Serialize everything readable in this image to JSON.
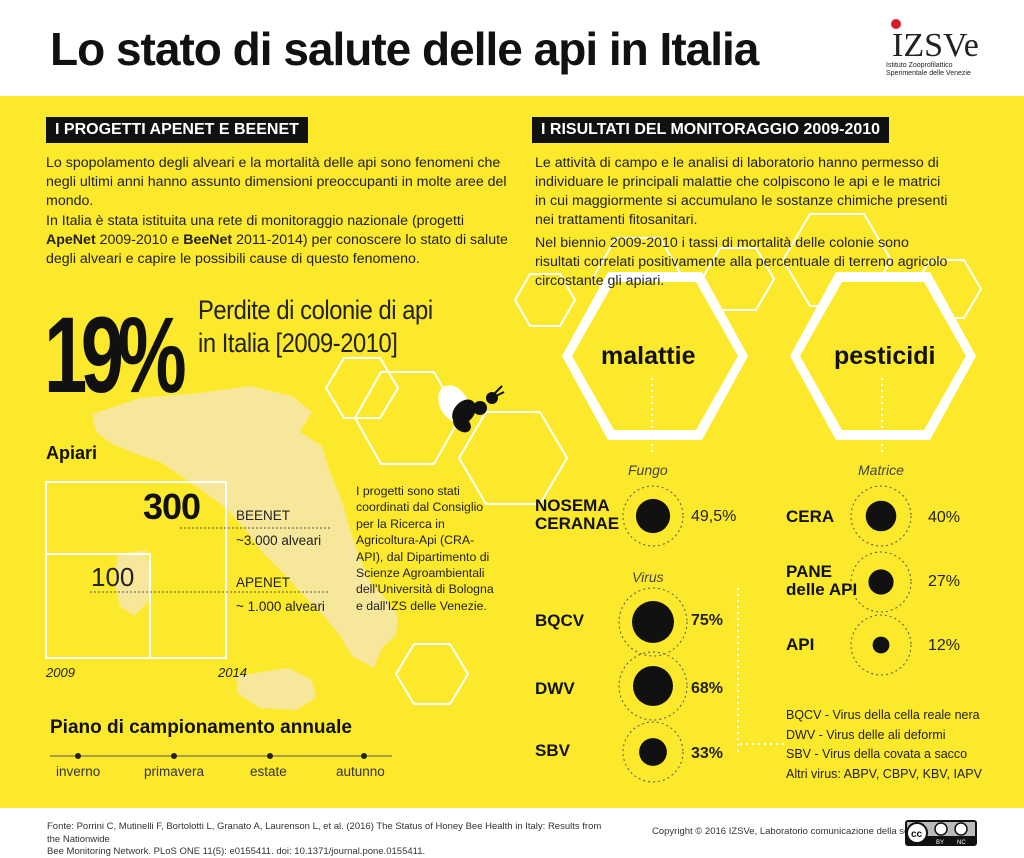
{
  "header": {
    "title": "Lo stato di salute delle api in Italia",
    "logo_letters": "IZSVe",
    "logo_lines": [
      "Istituto Zooprofilattico",
      "Sperimentale delle Venezie"
    ]
  },
  "left": {
    "section_title": "I PROGETTI APENET E BEENET",
    "para1": "Lo spopolamento degli alveari e la mortalità delle api sono fenomeni che negli ultimi anni hanno assunto dimensioni preoccupanti in molte aree del mondo.",
    "para2_a": "In Italia è stata istituita una rete di monitoraggio nazionale (progetti ",
    "para2_apenet": "ApeNet",
    "para2_b": " 2009-2010 e ",
    "para2_beenet": "BeeNet",
    "para2_c": " 2011-2014) per conoscere lo stato di salute degli alveari e capire le possibili cause di questo fenomeno.",
    "loss_value": "19%",
    "loss_label_1": "Perdite di colonie di api",
    "loss_label_2": "in Italia [2009-2010]",
    "apiari_title": "Apiari",
    "beenet_count": "300",
    "beenet_name": "BEENET",
    "beenet_hives": "~3.000 alveari",
    "apenet_count": "100",
    "apenet_name": "APENET",
    "apenet_hives": "~ 1.000 alveari",
    "year_start": "2009",
    "year_end": "2014",
    "note": "I progetti sono stati coordinati dal Consiglio per la Ricerca in Agricoltura-Api (CRA-API), dal Dipartimento di Scienze Agroambientali dell'Università di Bologna e dall'IZS delle Venezie.",
    "plan_title": "Piano di campionamento annuale",
    "seasons": [
      "inverno",
      "primavera",
      "estate",
      "autunno"
    ]
  },
  "right": {
    "section_title": "I RISULTATI DEL MONITORAGGIO 2009-2010",
    "para1": "Le attività di campo e le analisi di laboratorio hanno permesso di individuare le principali malattie che colpiscono le api e le matrici in cui maggiormente si accumulano le sostanze chimiche presenti nei trattamenti fitosanitari.",
    "para2": "Nel biennio 2009-2010 i tassi di mortalità delle colonie sono risultati correlati positivamente alla percentuale di terreno agricolo circostante gli apiari.",
    "malattie": {
      "title": "malattie",
      "fungo_label": "Fungo",
      "virus_label": "Virus",
      "rows": [
        {
          "line1": "NOSEMA",
          "line2": "CERANAE",
          "value": "49,5%",
          "fraction": 0.495
        },
        {
          "line1": "BQCV",
          "line2": "",
          "value": "75%",
          "fraction": 0.75
        },
        {
          "line1": "DWV",
          "line2": "",
          "value": "68%",
          "fraction": 0.68
        },
        {
          "line1": "SBV",
          "line2": "",
          "value": "33%",
          "fraction": 0.33
        }
      ]
    },
    "pesticidi": {
      "title": "pesticidi",
      "matrice_label": "Matrice",
      "rows": [
        {
          "line1": "CERA",
          "line2": "",
          "value": "40%",
          "fraction": 0.4
        },
        {
          "line1": "PANE",
          "line2": "delle API",
          "value": "27%",
          "fraction": 0.27
        },
        {
          "line1": "API",
          "line2": "",
          "value": "12%",
          "fraction": 0.12
        }
      ]
    },
    "legend": [
      "BQCV - Virus della cella reale nera",
      "DWV - Virus delle ali deformi",
      "SBV - Virus della covata a sacco",
      "Altri virus: ABPV, CBPV, KBV, IAPV"
    ]
  },
  "footer": {
    "source_line1": "Fonte: Porrini C, Mutinelli F, Bortolotti L, Granato A, Laurenson L, et al. (2016) The Status of Honey Bee Health in Italy: Results from the Nationwide",
    "source_line2": "Bee Monitoring Network. PLoS ONE 11(5): e0155411. doi: 10.1371/journal.pone.0155411.",
    "copyright": "Copyright © 2016 IZSVe, Laboratorio comunicazione della scienza.",
    "license_labels": [
      "BY",
      "NC"
    ]
  },
  "colors": {
    "yellow": "#fde92b",
    "black": "#111111",
    "map": "#f6e79a",
    "logo_red": "#d41f2b"
  },
  "icons": [
    "bee-icon",
    "italy-map",
    "hexagon-outline",
    "creative-commons-icon"
  ]
}
